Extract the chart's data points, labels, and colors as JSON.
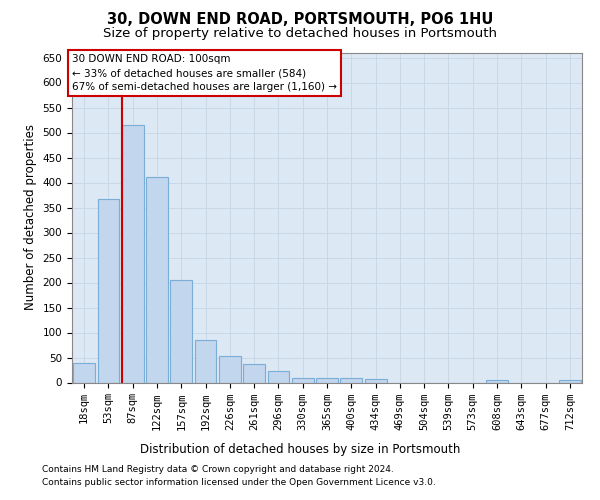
{
  "title": "30, DOWN END ROAD, PORTSMOUTH, PO6 1HU",
  "subtitle": "Size of property relative to detached houses in Portsmouth",
  "xlabel": "Distribution of detached houses by size in Portsmouth",
  "ylabel": "Number of detached properties",
  "footnote1": "Contains HM Land Registry data © Crown copyright and database right 2024.",
  "footnote2": "Contains public sector information licensed under the Open Government Licence v3.0.",
  "bar_labels": [
    "18sqm",
    "53sqm",
    "87sqm",
    "122sqm",
    "157sqm",
    "192sqm",
    "226sqm",
    "261sqm",
    "296sqm",
    "330sqm",
    "365sqm",
    "400sqm",
    "434sqm",
    "469sqm",
    "504sqm",
    "539sqm",
    "573sqm",
    "608sqm",
    "643sqm",
    "677sqm",
    "712sqm"
  ],
  "bar_values": [
    40,
    367,
    516,
    411,
    205,
    85,
    54,
    37,
    24,
    10,
    10,
    10,
    7,
    0,
    0,
    0,
    0,
    5,
    0,
    0,
    5
  ],
  "bar_color": "#c2d6ed",
  "bar_edge_color": "#7aaed6",
  "vline_color": "#cc0000",
  "vline_x": 2.0,
  "annotation_text": "30 DOWN END ROAD: 100sqm\n← 33% of detached houses are smaller (584)\n67% of semi-detached houses are larger (1,160) →",
  "annotation_box_facecolor": "#ffffff",
  "annotation_box_edgecolor": "#cc0000",
  "ylim": [
    0,
    660
  ],
  "yticks": [
    0,
    50,
    100,
    150,
    200,
    250,
    300,
    350,
    400,
    450,
    500,
    550,
    600,
    650
  ],
  "grid_color": "#c5d5e5",
  "axes_bg_color": "#dce8f4",
  "title_fontsize": 10.5,
  "subtitle_fontsize": 9.5,
  "axis_label_fontsize": 8.5,
  "tick_fontsize": 7.5,
  "annotation_fontsize": 7.5,
  "footnote_fontsize": 6.5
}
